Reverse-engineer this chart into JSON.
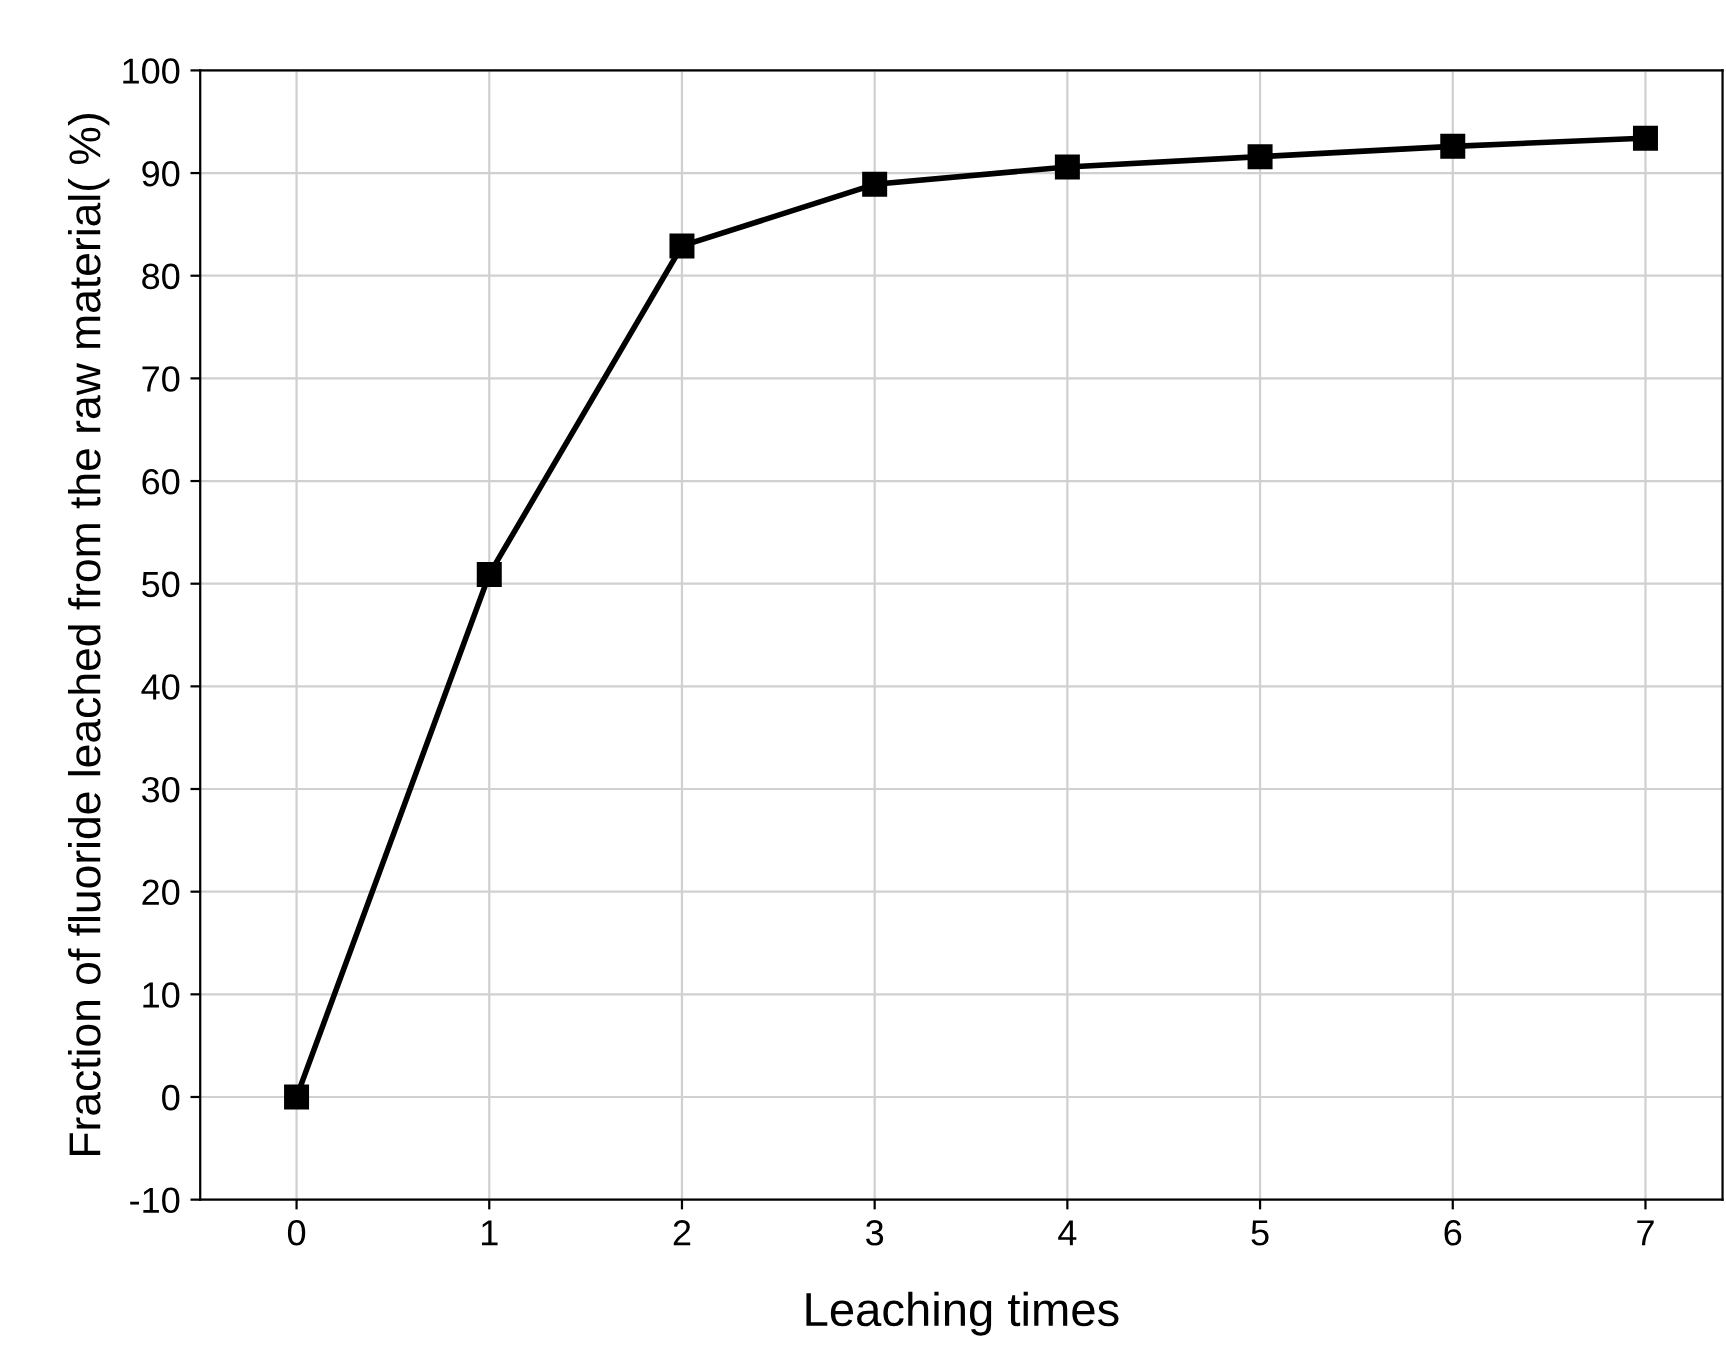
{
  "chart_data": {
    "type": "line",
    "xlabel": "Leaching times",
    "ylabel": "Fraction of fluoride leached from the raw material( %)",
    "x": [
      0,
      1,
      2,
      3,
      4,
      5,
      6,
      7
    ],
    "series": [
      {
        "color": "#000000",
        "values": [
          0,
          50.9,
          82.9,
          88.9,
          90.6,
          91.6,
          92.6,
          93.4
        ]
      }
    ],
    "xlim": [
      -0.5,
      7.4
    ],
    "xticks": [
      0,
      1,
      2,
      3,
      4,
      5,
      6,
      7
    ],
    "ylim": [
      -10,
      100
    ],
    "yticks": [
      -10,
      0,
      10,
      20,
      30,
      40,
      50,
      60,
      70,
      80,
      90,
      100
    ],
    "grid": true,
    "marker": "square",
    "line_style": "solid",
    "legend": false
  }
}
